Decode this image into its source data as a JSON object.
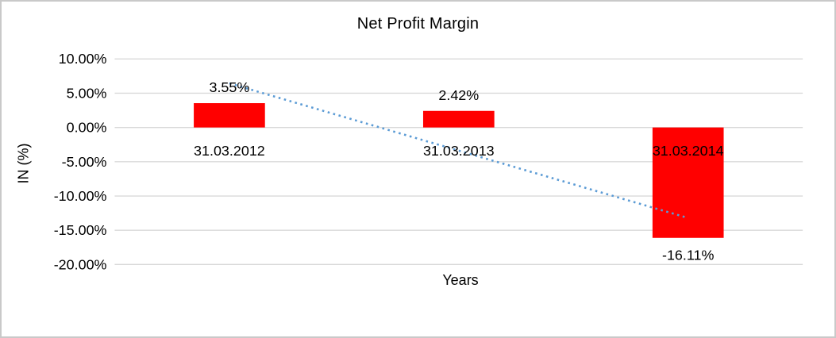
{
  "chart_data": {
    "type": "bar",
    "title": "Net Profit Margin",
    "xlabel": "Years",
    "ylabel": "IN (%)",
    "categories": [
      "31.03.2012",
      "31.03.2013",
      "31.03.2014"
    ],
    "values": [
      3.55,
      2.42,
      -16.11
    ],
    "data_labels": [
      "3.55%",
      "2.42%",
      "-16.11%"
    ],
    "series_name": "Net Profit Margin",
    "bar_color": "#ff0000",
    "ylim": [
      -20,
      10
    ],
    "yticks": [
      {
        "value": 10,
        "label": "10.00%"
      },
      {
        "value": 5,
        "label": "5.00%"
      },
      {
        "value": 0,
        "label": "0.00%"
      },
      {
        "value": -5,
        "label": "-5.00%"
      },
      {
        "value": -10,
        "label": "-10.00%"
      },
      {
        "value": -15,
        "label": "-15.00%"
      },
      {
        "value": -20,
        "label": "-20.00%"
      }
    ],
    "grid": true,
    "gridline_color": "#d9d9d9",
    "legend": "none",
    "trendline": {
      "type": "linear",
      "style": "dotted",
      "color": "#5b9bd5",
      "start_value": 6.45,
      "end_value": -13.21
    }
  }
}
